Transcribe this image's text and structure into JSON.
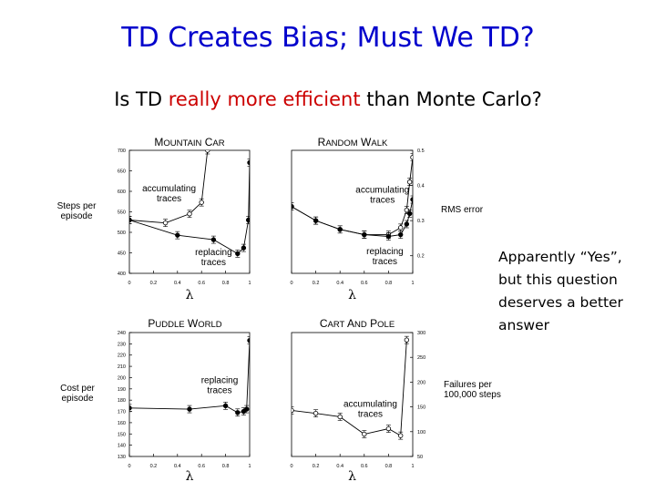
{
  "slide": {
    "title": "TD Creates Bias; Must We TD?",
    "subtitle_parts": [
      "Is TD ",
      "really more efficient",
      " than Monte Carlo?"
    ],
    "side_note": "Apparently “Yes”, but this question deserves a better answer"
  },
  "colors": {
    "title": "#0000cc",
    "highlight": "#cc0000"
  },
  "chart_data": [
    {
      "type": "line",
      "title": "Mountain Car",
      "xlabel": "λ",
      "ylabel": "Steps per episode",
      "x_ticks": [
        "0",
        "0.2",
        "0.4",
        "0.6",
        "0.8",
        "1"
      ],
      "y_ticks": [
        "400",
        "450",
        "500",
        "550",
        "600",
        "650",
        "700"
      ],
      "xlim": [
        0,
        1
      ],
      "ylim": [
        400,
        700
      ],
      "y_axis_side": "left",
      "series": [
        {
          "marker": "open",
          "x": [
            0,
            0.3,
            0.5,
            0.6,
            0.65
          ],
          "y": [
            530,
            523,
            545,
            573,
            700
          ]
        },
        {
          "marker": "filled",
          "x": [
            0,
            0.4,
            0.7,
            0.9,
            0.95,
            0.99,
            1
          ],
          "y": [
            530,
            493,
            482,
            448,
            462,
            530,
            670
          ]
        }
      ],
      "annotations": [
        {
          "text": [
            "accumulating",
            "traces"
          ],
          "x": 0.33,
          "y": 600
        },
        {
          "text": [
            "replacing",
            "traces"
          ],
          "x": 0.7,
          "y": 445
        }
      ]
    },
    {
      "type": "line",
      "title": "Random Walk",
      "xlabel": "λ",
      "ylabel": "RMS error",
      "x_ticks": [
        "0",
        "0.2",
        "0.4",
        "0.6",
        "0.8",
        "1"
      ],
      "y_ticks": [
        "0.2",
        "0.3",
        "0.4",
        "0.5"
      ],
      "xlim": [
        0,
        1
      ],
      "ylim": [
        0.15,
        0.5
      ],
      "y_axis_side": "right",
      "series": [
        {
          "marker": "open",
          "x": [
            0,
            0.2,
            0.4,
            0.6,
            0.8,
            0.9,
            0.95,
            0.975,
            1
          ],
          "y": [
            0.34,
            0.3,
            0.275,
            0.26,
            0.26,
            0.28,
            0.33,
            0.41,
            0.48
          ]
        },
        {
          "marker": "filled",
          "x": [
            0,
            0.2,
            0.4,
            0.6,
            0.8,
            0.9,
            0.95,
            0.975,
            1
          ],
          "y": [
            0.34,
            0.3,
            0.275,
            0.26,
            0.255,
            0.26,
            0.29,
            0.32,
            0.36
          ]
        }
      ],
      "annotations": [
        {
          "text": [
            "accumulating",
            "traces"
          ],
          "x": 0.75,
          "y": 0.38
        },
        {
          "text": [
            "replacing",
            "traces"
          ],
          "x": 0.77,
          "y": 0.205
        }
      ]
    },
    {
      "type": "line",
      "title": "Puddle World",
      "xlabel": "λ",
      "ylabel": "Cost per episode",
      "x_ticks": [
        "0",
        "0.2",
        "0.4",
        "0.6",
        "0.8",
        "1"
      ],
      "y_ticks": [
        "130",
        "140",
        "150",
        "160",
        "170",
        "180",
        "190",
        "200",
        "210",
        "220",
        "230",
        "240"
      ],
      "xlim": [
        0,
        1
      ],
      "ylim": [
        130,
        240
      ],
      "y_axis_side": "left",
      "series": [
        {
          "marker": "filled",
          "x": [
            0,
            0.5,
            0.8,
            0.9,
            0.95,
            0.975,
            1
          ],
          "y": [
            173,
            172,
            175,
            169,
            170,
            172,
            233
          ]
        }
      ],
      "annotations": [
        {
          "text": [
            "replacing",
            "traces"
          ],
          "x": 0.75,
          "y": 195
        }
      ]
    },
    {
      "type": "line",
      "title": "Cart and Pole",
      "xlabel": "λ",
      "ylabel": "Failures per 100,000 steps",
      "x_ticks": [
        "0",
        "0.2",
        "0.4",
        "0.6",
        "0.8",
        "1"
      ],
      "y_ticks": [
        "50",
        "100",
        "150",
        "200",
        "250",
        "300"
      ],
      "xlim": [
        0,
        1
      ],
      "ylim": [
        50,
        300
      ],
      "y_axis_side": "right",
      "series": [
        {
          "marker": "open",
          "x": [
            0,
            0.2,
            0.4,
            0.6,
            0.8,
            0.9,
            0.95
          ],
          "y": [
            143,
            137,
            130,
            95,
            106,
            92,
            285
          ]
        }
      ],
      "annotations": [
        {
          "text": [
            "accumulating",
            "traces"
          ],
          "x": 0.65,
          "y": 150
        }
      ]
    }
  ]
}
